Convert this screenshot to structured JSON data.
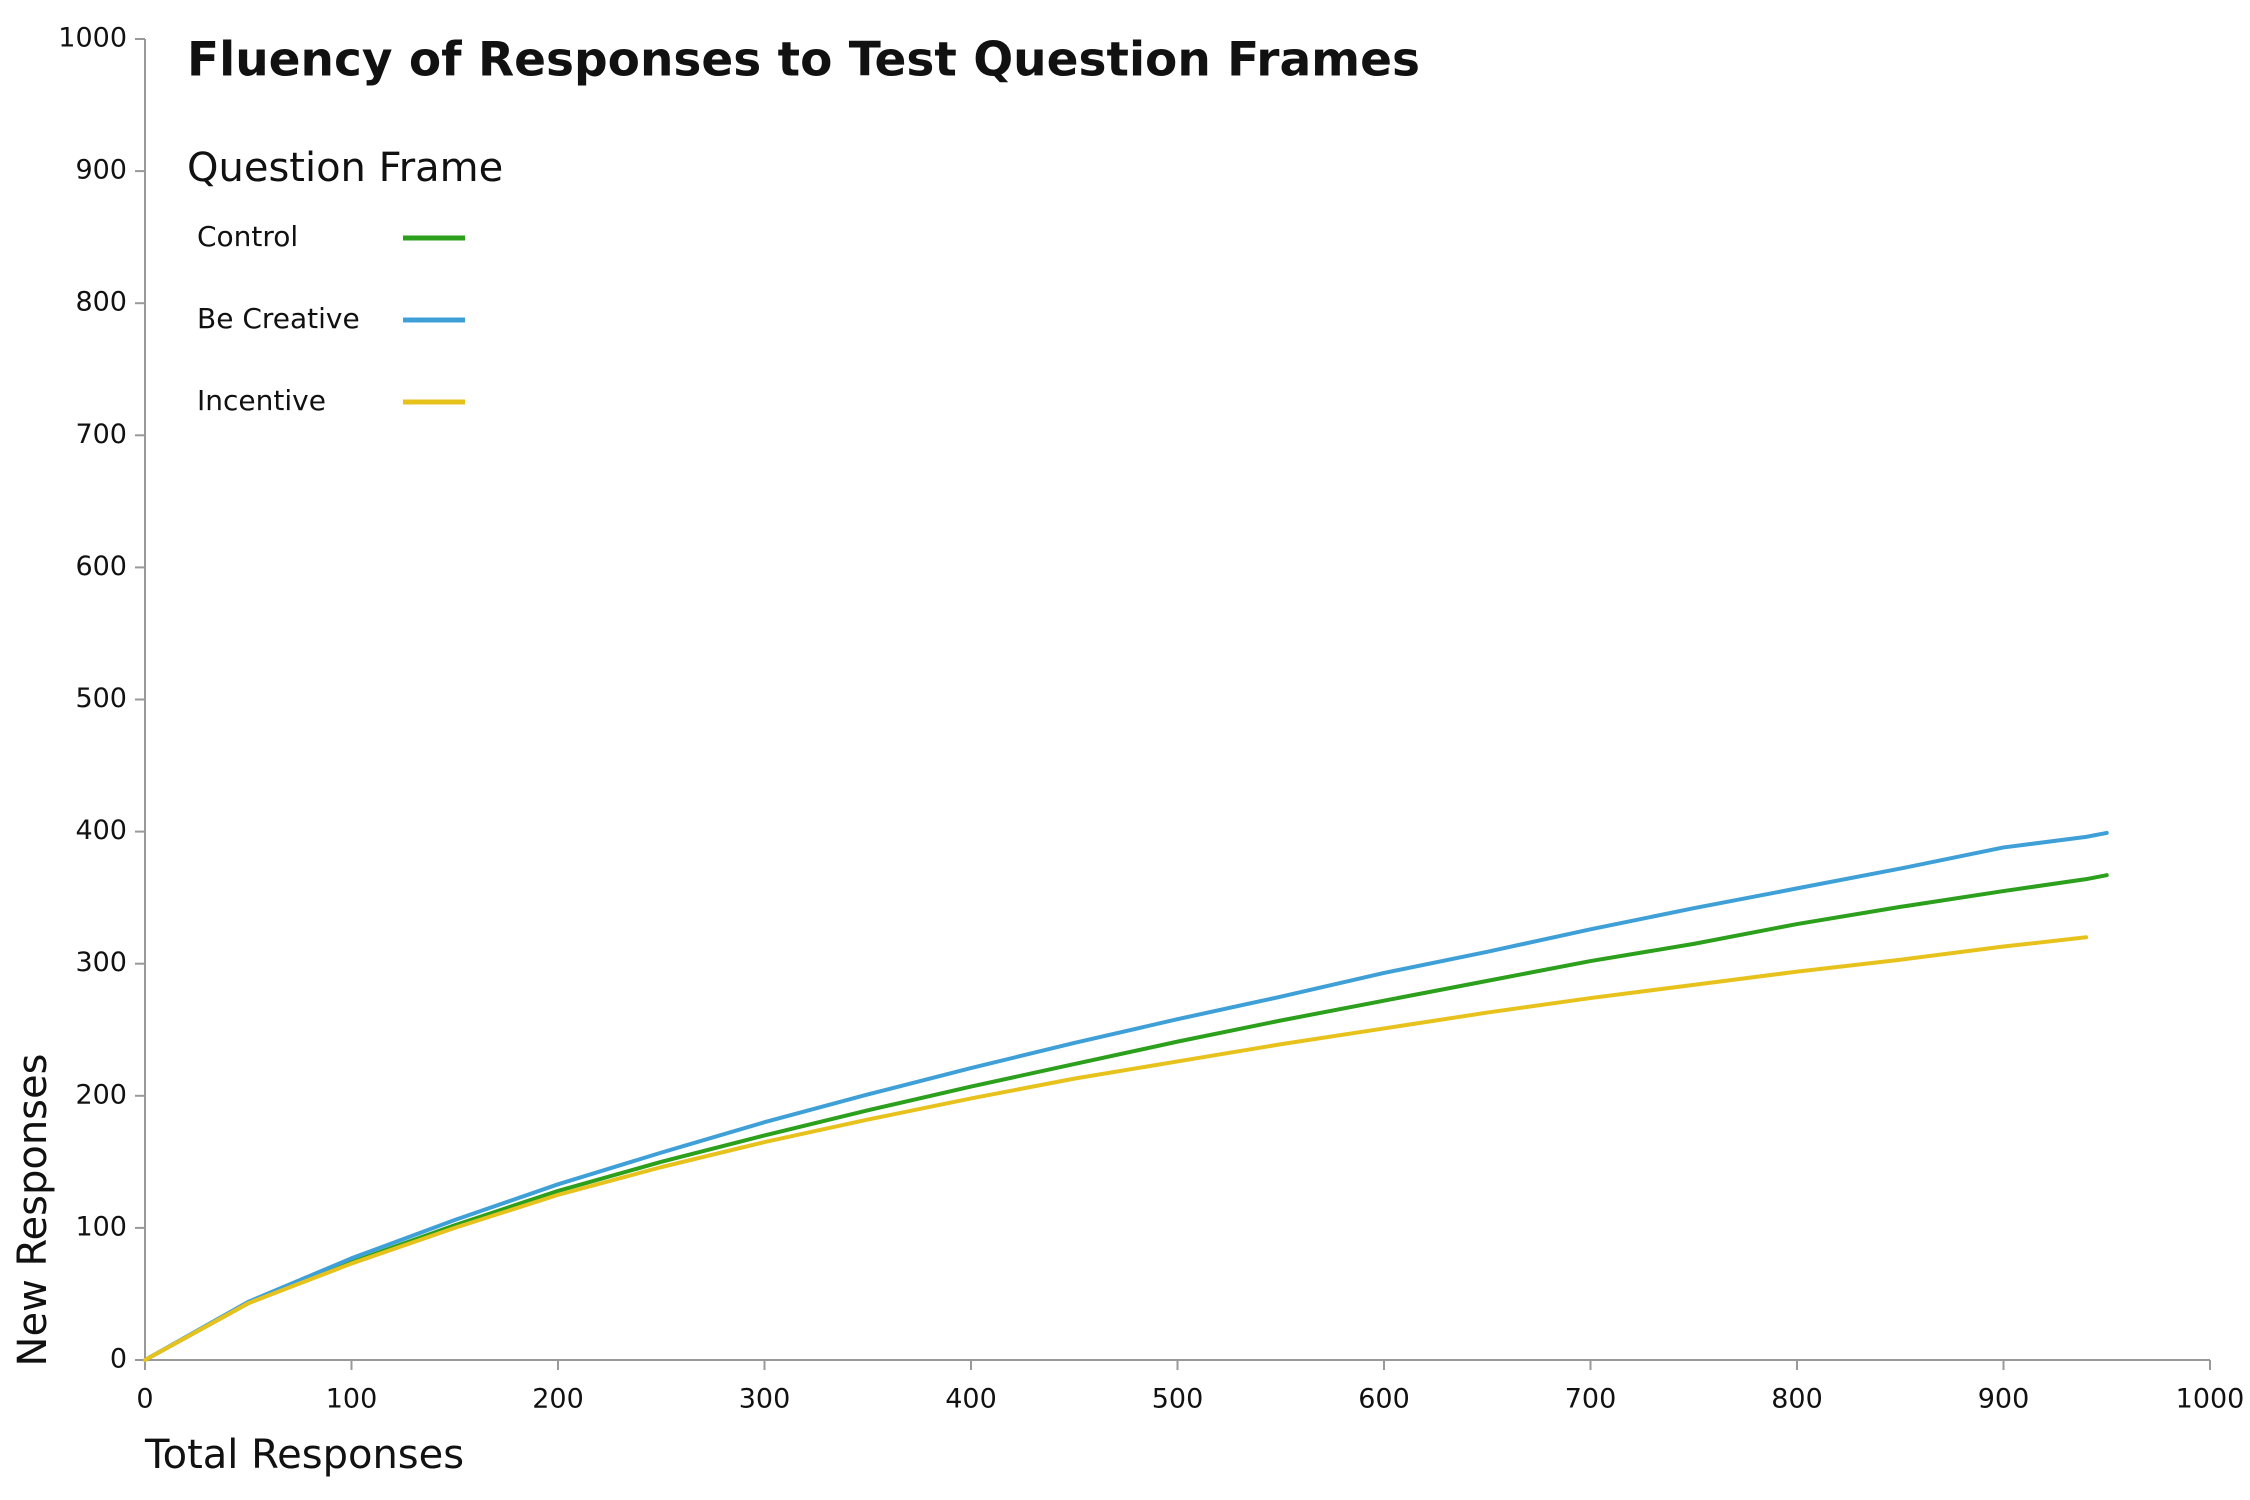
{
  "chart_data": {
    "type": "line",
    "title": "Fluency of Responses to Test Question Frames",
    "legend_title": "Question Frame",
    "legend": "top-left",
    "x_label": "Total Responses",
    "y_label": "New Responses",
    "xlim": [
      0,
      1000
    ],
    "ylim": [
      0,
      1000
    ],
    "xticks": [
      0,
      100,
      200,
      300,
      400,
      500,
      600,
      700,
      800,
      900,
      1000
    ],
    "yticks": [
      0,
      100,
      200,
      300,
      400,
      500,
      600,
      700,
      800,
      900,
      1000
    ],
    "grid": false,
    "x": [
      0,
      50,
      100,
      150,
      200,
      250,
      300,
      350,
      400,
      450,
      500,
      550,
      600,
      650,
      700,
      750,
      800,
      850,
      900,
      940,
      950
    ],
    "series": [
      {
        "name": "Control",
        "color": "#2ca01c",
        "values": [
          0,
          43,
          74,
          102,
          128,
          150,
          170,
          189,
          207,
          224,
          241,
          257,
          272,
          287,
          302,
          315,
          330,
          343,
          355,
          364,
          367
        ]
      },
      {
        "name": "Be Creative",
        "color": "#3fa0d8",
        "values": [
          0,
          44,
          77,
          106,
          133,
          157,
          180,
          201,
          221,
          240,
          258,
          275,
          293,
          309,
          326,
          342,
          357,
          372,
          388,
          396,
          399
        ]
      },
      {
        "name": "Incentive",
        "color": "#e8c21c",
        "values": [
          0,
          43,
          73,
          100,
          125,
          146,
          165,
          182,
          198,
          213,
          226,
          239,
          251,
          263,
          274,
          284,
          294,
          303,
          313,
          320,
          null
        ]
      }
    ]
  }
}
